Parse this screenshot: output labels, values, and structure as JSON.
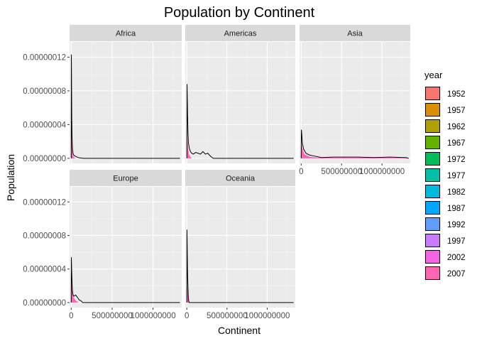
{
  "chart_data": {
    "type": "area",
    "title": "Population by Continent",
    "xlabel": "Continent",
    "ylabel": "Population",
    "xlim": [
      -20000000,
      1350000000
    ],
    "ylim": [
      -6e-09,
      1.38e-07
    ],
    "x_ticks": [
      0,
      500000000,
      1000000000
    ],
    "x_tick_labels": [
      "0",
      "500000000",
      "1000000000"
    ],
    "y_ticks": [
      0,
      4e-08,
      8e-08,
      1.2e-07
    ],
    "y_tick_labels": [
      "0.00000000",
      "0.00000004",
      "0.00000008",
      "0.00000012"
    ],
    "grid": true,
    "legend": {
      "title": "year",
      "position": "right",
      "entries": [
        {
          "label": "1952",
          "color": "#F8766D"
        },
        {
          "label": "1957",
          "color": "#DB8E00"
        },
        {
          "label": "1962",
          "color": "#AEA200"
        },
        {
          "label": "1967",
          "color": "#64B200"
        },
        {
          "label": "1972",
          "color": "#00BD5C"
        },
        {
          "label": "1977",
          "color": "#00C1A7"
        },
        {
          "label": "1982",
          "color": "#00BADE"
        },
        {
          "label": "1987",
          "color": "#00A6FF"
        },
        {
          "label": "1992",
          "color": "#619CFF"
        },
        {
          "label": "1997",
          "color": "#C77CFF"
        },
        {
          "label": "2002",
          "color": "#F564E3"
        },
        {
          "label": "2007",
          "color": "#FF64B0"
        }
      ]
    },
    "facets": [
      {
        "name": "Africa",
        "peak": [
          [
            0,
            0
          ],
          [
            2000000,
            1.23e-07
          ],
          [
            4000000,
            9.3e-08
          ],
          [
            7000000,
            4.8e-08
          ],
          [
            10000000,
            2.7e-08
          ],
          [
            15000000,
            1.2e-08
          ],
          [
            22000000,
            6e-09
          ],
          [
            30000000,
            4e-09
          ],
          [
            40000000,
            3e-09
          ],
          [
            55000000,
            2.5e-09
          ],
          [
            70000000,
            1.5e-09
          ],
          [
            90000000,
            8e-10
          ],
          [
            120000000,
            3e-10
          ],
          [
            160000000,
            0
          ],
          [
            1330000000,
            0
          ]
        ],
        "fill": [
          [
            0,
            0
          ],
          [
            2000000,
            2.9e-08
          ],
          [
            5000000,
            2.6e-08
          ],
          [
            9000000,
            1.8e-08
          ],
          [
            14000000,
            8e-09
          ],
          [
            22000000,
            3e-09
          ],
          [
            35000000,
            1e-09
          ],
          [
            60000000,
            0
          ]
        ]
      },
      {
        "name": "Americas",
        "peak": [
          [
            0,
            0
          ],
          [
            2000000,
            8.8e-08
          ],
          [
            5000000,
            7.2e-08
          ],
          [
            9000000,
            5e-08
          ],
          [
            14000000,
            3e-08
          ],
          [
            20000000,
            1.8e-08
          ],
          [
            30000000,
            1.2e-08
          ],
          [
            45000000,
            8e-09
          ],
          [
            60000000,
            6e-09
          ],
          [
            80000000,
            5e-09
          ],
          [
            110000000,
            7e-09
          ],
          [
            140000000,
            6e-09
          ],
          [
            170000000,
            5e-09
          ],
          [
            200000000,
            8e-09
          ],
          [
            230000000,
            5e-09
          ],
          [
            260000000,
            6e-09
          ],
          [
            300000000,
            2e-09
          ],
          [
            330000000,
            0
          ],
          [
            1330000000,
            0
          ]
        ],
        "fill": [
          [
            0,
            0
          ],
          [
            3000000,
            2.8e-08
          ],
          [
            8000000,
            2.2e-08
          ],
          [
            15000000,
            1.2e-08
          ],
          [
            25000000,
            5e-09
          ],
          [
            40000000,
            2e-09
          ],
          [
            60000000,
            0
          ]
        ]
      },
      {
        "name": "Asia",
        "peak": [
          [
            0,
            0
          ],
          [
            3000000,
            3.4e-08
          ],
          [
            8000000,
            2.8e-08
          ],
          [
            15000000,
            1.8e-08
          ],
          [
            30000000,
            1.1e-08
          ],
          [
            60000000,
            6e-09
          ],
          [
            100000000,
            4e-09
          ],
          [
            150000000,
            3e-09
          ],
          [
            250000000,
            1e-09
          ],
          [
            400000000,
            1.5e-09
          ],
          [
            600000000,
            1.5e-09
          ],
          [
            700000000,
            1.5e-09
          ],
          [
            900000000,
            1e-09
          ],
          [
            1100000000,
            1.5e-09
          ],
          [
            1300000000,
            8e-10
          ],
          [
            1330000000,
            0
          ]
        ],
        "fill": [
          [
            0,
            0
          ],
          [
            5000000,
            1.8e-08
          ],
          [
            15000000,
            1.2e-08
          ],
          [
            40000000,
            5e-09
          ],
          [
            100000000,
            2e-09
          ],
          [
            200000000,
            1e-09
          ],
          [
            400000000,
            8e-10
          ],
          [
            800000000,
            8e-10
          ],
          [
            1330000000,
            5e-10
          ]
        ]
      },
      {
        "name": "Europe",
        "peak": [
          [
            0,
            0
          ],
          [
            2000000,
            5.4e-08
          ],
          [
            5000000,
            4.2e-08
          ],
          [
            9000000,
            2.8e-08
          ],
          [
            14000000,
            1.6e-08
          ],
          [
            20000000,
            1e-08
          ],
          [
            28000000,
            8e-09
          ],
          [
            40000000,
            8e-09
          ],
          [
            55000000,
            9e-09
          ],
          [
            70000000,
            7e-09
          ],
          [
            85000000,
            5e-09
          ],
          [
            100000000,
            3e-09
          ],
          [
            120000000,
            2e-09
          ],
          [
            140000000,
            0
          ],
          [
            1330000000,
            0
          ]
        ],
        "fill": [
          [
            0,
            0
          ],
          [
            3000000,
            2.5e-08
          ],
          [
            8000000,
            2.2e-08
          ],
          [
            15000000,
            1.5e-08
          ],
          [
            25000000,
            8e-09
          ],
          [
            40000000,
            4e-09
          ],
          [
            60000000,
            2e-09
          ],
          [
            90000000,
            0
          ]
        ]
      },
      {
        "name": "Oceania",
        "peak": [
          [
            0,
            0
          ],
          [
            1000000,
            8.7e-08
          ],
          [
            3000000,
            7.5e-08
          ],
          [
            5000000,
            6e-08
          ],
          [
            7000000,
            4.5e-08
          ],
          [
            10000000,
            3e-08
          ],
          [
            14000000,
            1.8e-08
          ],
          [
            18000000,
            8e-09
          ],
          [
            22000000,
            3e-09
          ],
          [
            28000000,
            0
          ],
          [
            1330000000,
            0
          ]
        ],
        "fill": [
          [
            0,
            0
          ],
          [
            2000000,
            2e-08
          ],
          [
            6000000,
            1.8e-08
          ],
          [
            12000000,
            1e-08
          ],
          [
            20000000,
            4e-09
          ],
          [
            30000000,
            0
          ]
        ]
      }
    ]
  }
}
